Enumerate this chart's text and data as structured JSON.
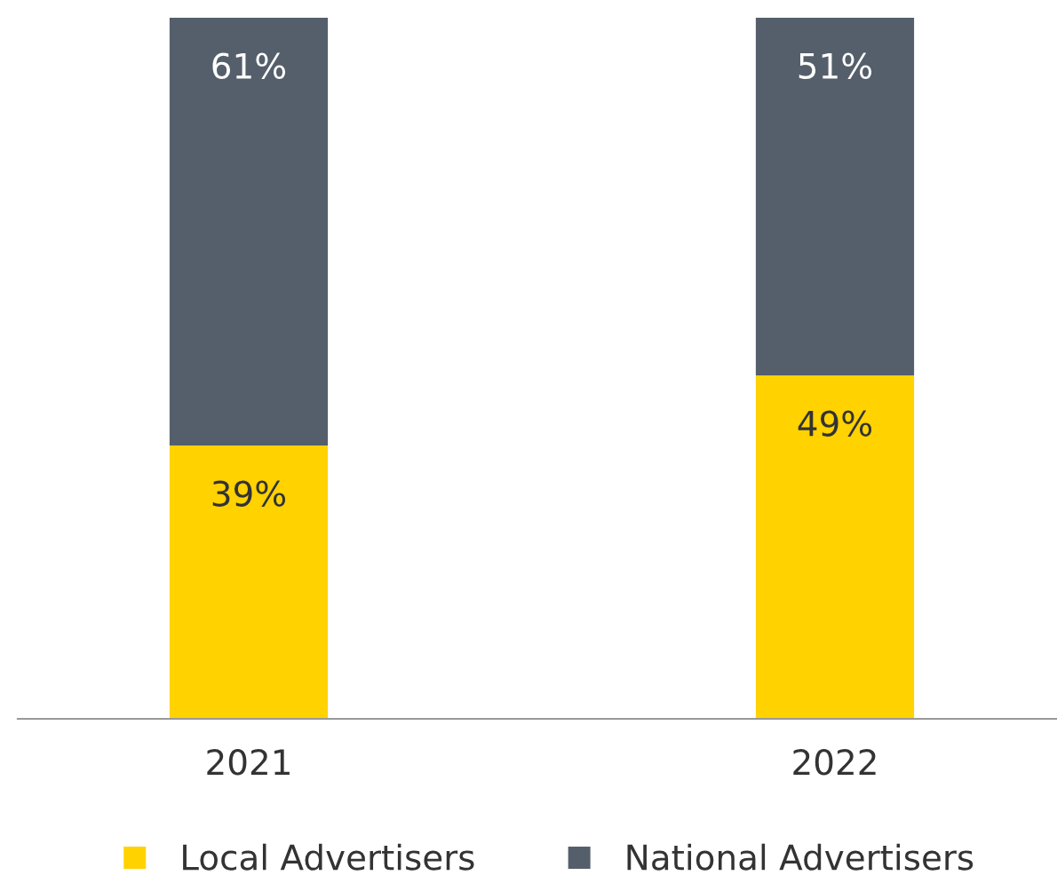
{
  "chart_data": {
    "type": "bar",
    "stacked": true,
    "categories": [
      "2021",
      "2022"
    ],
    "series": [
      {
        "name": "Local Advertisers",
        "color": "#ffd200",
        "values": [
          39,
          49
        ],
        "value_labels": [
          "39%",
          "49%"
        ]
      },
      {
        "name": "National Advertisers",
        "color": "#555f6b",
        "values": [
          61,
          51
        ],
        "value_labels": [
          "61%",
          "51%"
        ]
      }
    ],
    "legend": "bottom"
  }
}
